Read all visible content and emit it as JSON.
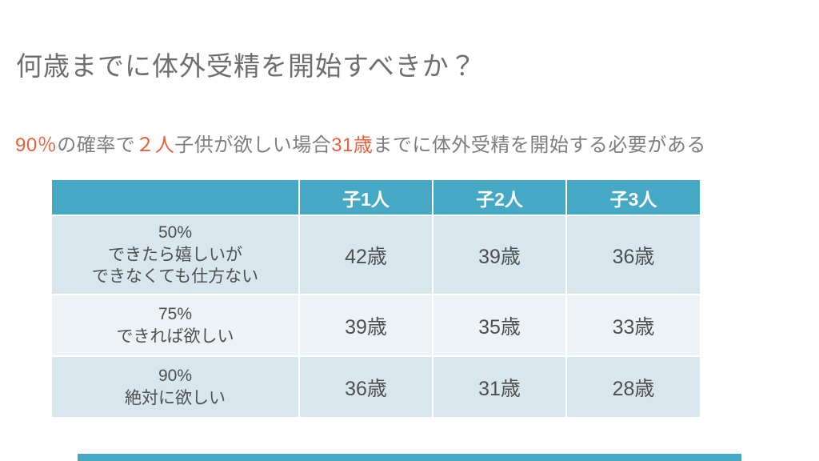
{
  "slide": {
    "title": "何歳までに体外受精を開始すべきか？",
    "subtitle": {
      "segments": [
        {
          "text": "90％",
          "highlight": true
        },
        {
          "text": "の確率で",
          "highlight": false
        },
        {
          "text": "２人",
          "highlight": true
        },
        {
          "text": "子供が欲しい場合",
          "highlight": false
        },
        {
          "text": "31歳",
          "highlight": true
        },
        {
          "text": "までに体外受精を開始する必要がある",
          "highlight": false
        }
      ]
    },
    "table": {
      "column_headers": [
        "",
        "子1人",
        "子2人",
        "子3人"
      ],
      "rows": [
        {
          "label_lines": [
            "50%",
            "できたら嬉しいが",
            "できなくても仕方ない"
          ],
          "values": [
            "42歳",
            "39歳",
            "36歳"
          ]
        },
        {
          "label_lines": [
            "75%",
            "できれば欲しい"
          ],
          "values": [
            "39歳",
            "35歳",
            "33歳"
          ]
        },
        {
          "label_lines": [
            "90%",
            "絶対に欲しい"
          ],
          "values": [
            "36歳",
            "31歳",
            "28歳"
          ]
        }
      ]
    },
    "colors": {
      "accent_teal": "#45A9C6",
      "band_light": "#D8E6EE",
      "band_lighter": "#ECF2F6",
      "highlight_orange": "#E8613A",
      "title_gray": "#6E6E6E",
      "subtitle_gray": "#7E7E7E",
      "cell_text_gray": "#4F4F4F",
      "header_text": "#FFFFFF"
    }
  }
}
